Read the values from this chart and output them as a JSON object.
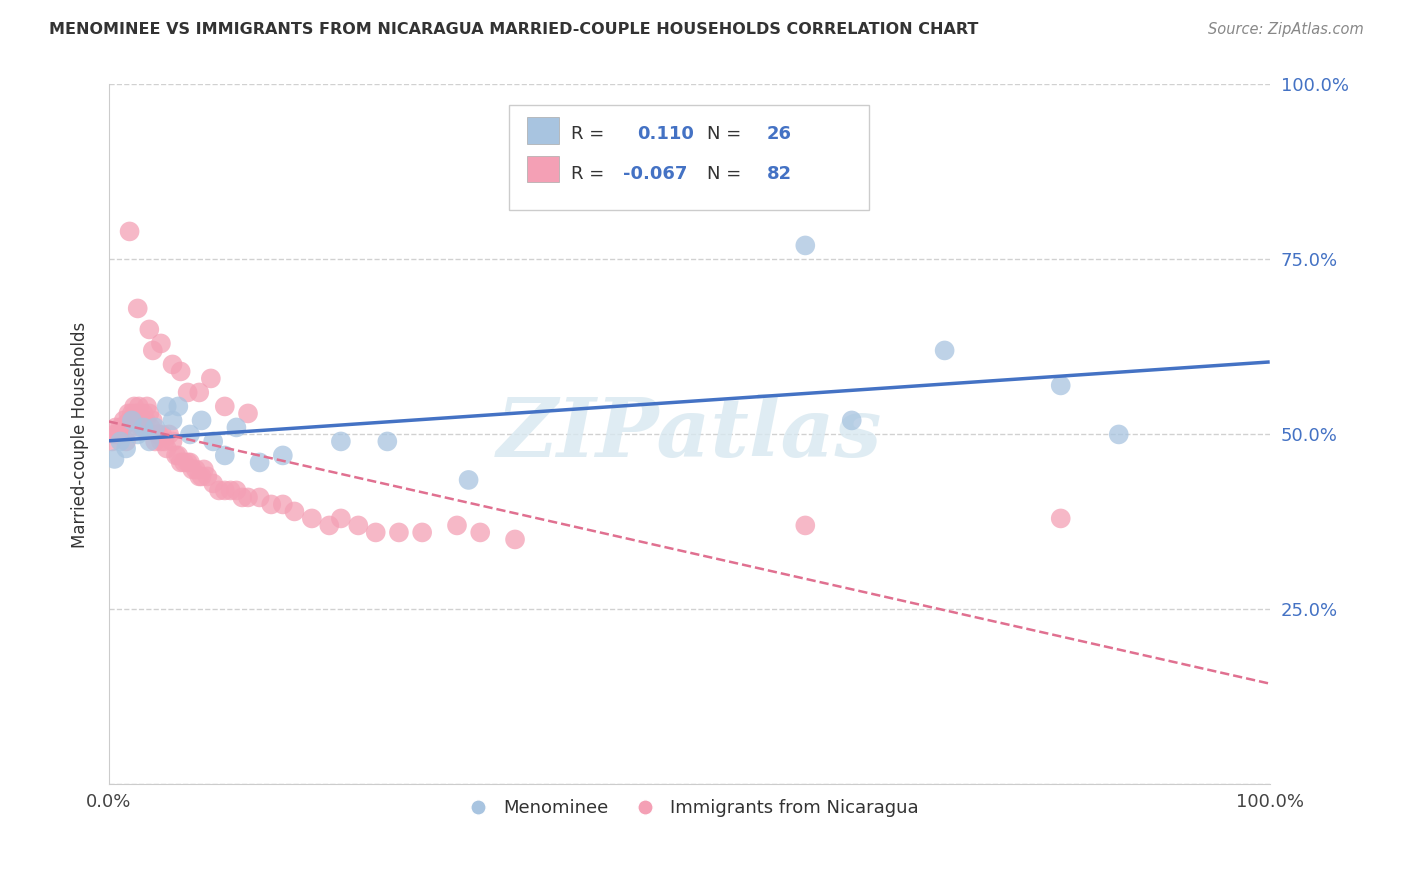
{
  "title": "MENOMINEE VS IMMIGRANTS FROM NICARAGUA MARRIED-COUPLE HOUSEHOLDS CORRELATION CHART",
  "source": "Source: ZipAtlas.com",
  "ylabel": "Married-couple Households",
  "legend_labels": [
    "Menominee",
    "Immigrants from Nicaragua"
  ],
  "R_blue": 0.11,
  "N_blue": 26,
  "R_pink": -0.067,
  "N_pink": 82,
  "blue_color": "#a8c4e0",
  "pink_color": "#f4a0b5",
  "blue_line_color": "#4472c4",
  "pink_line_color": "#e07090",
  "watermark": "ZIPatlas",
  "blue_x": [
    0.005,
    0.01,
    0.015,
    0.02,
    0.025,
    0.03,
    0.035,
    0.04,
    0.05,
    0.055,
    0.06,
    0.07,
    0.08,
    0.09,
    0.1,
    0.11,
    0.13,
    0.15,
    0.2,
    0.24,
    0.6,
    0.64,
    0.72,
    0.82,
    0.87,
    0.31
  ],
  "blue_y": [
    0.465,
    0.49,
    0.48,
    0.52,
    0.5,
    0.51,
    0.49,
    0.51,
    0.54,
    0.52,
    0.54,
    0.5,
    0.52,
    0.49,
    0.47,
    0.51,
    0.46,
    0.47,
    0.49,
    0.49,
    0.77,
    0.52,
    0.62,
    0.57,
    0.5,
    0.435
  ],
  "pink_x": [
    0.003,
    0.005,
    0.006,
    0.008,
    0.01,
    0.01,
    0.012,
    0.013,
    0.015,
    0.015,
    0.017,
    0.018,
    0.02,
    0.02,
    0.022,
    0.023,
    0.025,
    0.026,
    0.028,
    0.03,
    0.03,
    0.032,
    0.033,
    0.035,
    0.036,
    0.038,
    0.04,
    0.042,
    0.043,
    0.045,
    0.046,
    0.048,
    0.05,
    0.052,
    0.055,
    0.058,
    0.06,
    0.062,
    0.065,
    0.068,
    0.07,
    0.072,
    0.075,
    0.078,
    0.08,
    0.082,
    0.085,
    0.09,
    0.095,
    0.1,
    0.105,
    0.11,
    0.115,
    0.12,
    0.13,
    0.14,
    0.15,
    0.16,
    0.175,
    0.19,
    0.2,
    0.215,
    0.23,
    0.25,
    0.27,
    0.3,
    0.32,
    0.35,
    0.038,
    0.018,
    0.025,
    0.035,
    0.045,
    0.055,
    0.062,
    0.068,
    0.078,
    0.088,
    0.1,
    0.12,
    0.6,
    0.82
  ],
  "pink_y": [
    0.49,
    0.5,
    0.51,
    0.5,
    0.5,
    0.51,
    0.51,
    0.52,
    0.515,
    0.49,
    0.53,
    0.52,
    0.51,
    0.53,
    0.54,
    0.53,
    0.53,
    0.54,
    0.51,
    0.51,
    0.53,
    0.52,
    0.54,
    0.53,
    0.51,
    0.52,
    0.49,
    0.5,
    0.5,
    0.49,
    0.5,
    0.49,
    0.48,
    0.5,
    0.49,
    0.47,
    0.47,
    0.46,
    0.46,
    0.46,
    0.46,
    0.45,
    0.45,
    0.44,
    0.44,
    0.45,
    0.44,
    0.43,
    0.42,
    0.42,
    0.42,
    0.42,
    0.41,
    0.41,
    0.41,
    0.4,
    0.4,
    0.39,
    0.38,
    0.37,
    0.38,
    0.37,
    0.36,
    0.36,
    0.36,
    0.37,
    0.36,
    0.35,
    0.62,
    0.79,
    0.68,
    0.65,
    0.63,
    0.6,
    0.59,
    0.56,
    0.56,
    0.58,
    0.54,
    0.53,
    0.37,
    0.38
  ]
}
